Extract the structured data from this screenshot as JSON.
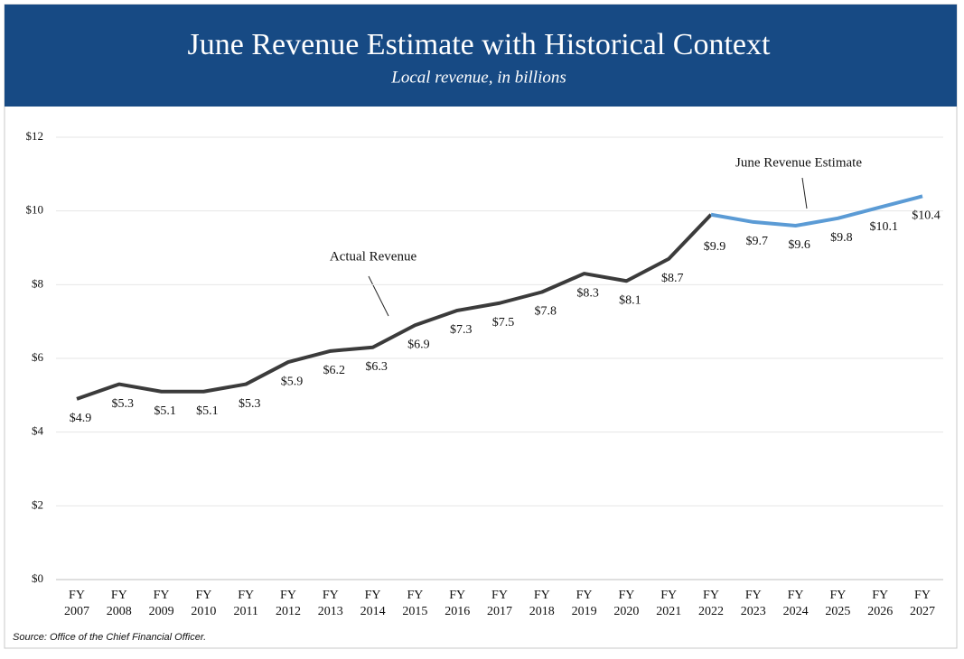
{
  "chart_data": {
    "type": "line",
    "title": "June Revenue Estimate with Historical Context",
    "subtitle": "Local revenue, in billions",
    "source": "Source: Office of the Chief Financial Officer.",
    "categories": [
      "FY 2007",
      "FY 2008",
      "FY 2009",
      "FY 2010",
      "FY 2011",
      "FY 2012",
      "FY 2013",
      "FY 2014",
      "FY 2015",
      "FY 2016",
      "FY 2017",
      "FY 2018",
      "FY 2019",
      "FY 2020",
      "FY 2021",
      "FY 2022",
      "FY 2023",
      "FY 2024",
      "FY 2025",
      "FY 2026",
      "FY 2027"
    ],
    "series": [
      {
        "name": "Actual Revenue",
        "color": "#3b3b3b",
        "values": [
          4.9,
          5.3,
          5.1,
          5.1,
          5.3,
          5.9,
          6.2,
          6.3,
          6.9,
          7.3,
          7.5,
          7.8,
          8.3,
          8.1,
          8.7,
          9.9,
          null,
          null,
          null,
          null,
          null
        ],
        "value_labels": [
          "$4.9",
          "$5.3",
          "$5.1",
          "$5.1",
          "$5.3",
          "$5.9",
          "$6.2",
          "$6.3",
          "$6.9",
          "$7.3",
          "$7.5",
          "$7.8",
          "$8.3",
          "$8.1",
          "$8.7",
          "$9.9",
          null,
          null,
          null,
          null,
          null
        ]
      },
      {
        "name": "June Revenue Estimate",
        "color": "#5b9bd5",
        "values": [
          null,
          null,
          null,
          null,
          null,
          null,
          null,
          null,
          null,
          null,
          null,
          null,
          null,
          null,
          null,
          9.9,
          9.7,
          9.6,
          9.8,
          10.1,
          10.4
        ],
        "value_labels": [
          null,
          null,
          null,
          null,
          null,
          null,
          null,
          null,
          null,
          null,
          null,
          null,
          null,
          null,
          null,
          null,
          "$9.7",
          "$9.6",
          "$9.8",
          "$10.1",
          "$10.4"
        ]
      }
    ],
    "ylim": [
      0,
      12
    ],
    "yticks": [
      {
        "value": 0,
        "label": "$0"
      },
      {
        "value": 2,
        "label": "$2"
      },
      {
        "value": 4,
        "label": "$4"
      },
      {
        "value": 6,
        "label": "$6"
      },
      {
        "value": 8,
        "label": "$8"
      },
      {
        "value": 10,
        "label": "$10"
      },
      {
        "value": 12,
        "label": "$12"
      }
    ],
    "grid": true
  }
}
